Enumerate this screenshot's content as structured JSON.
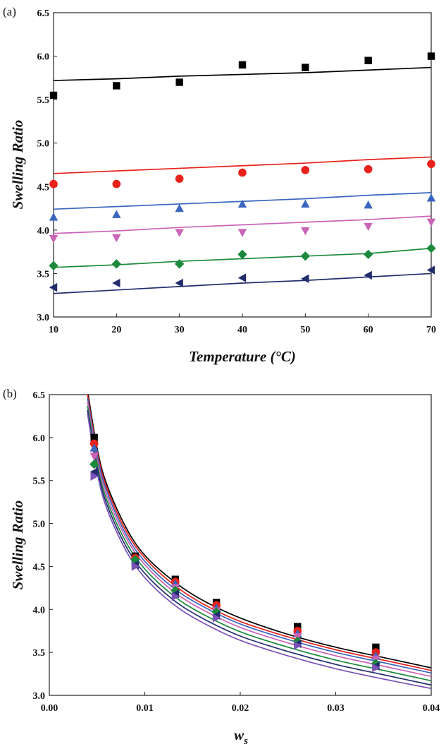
{
  "panel_a": {
    "label": "(a)",
    "xlabel": "Temperature (°C)",
    "ylabel": "Swelling Ratio"
  },
  "panel_b": {
    "label": "(b)",
    "xlabel_main": "w",
    "xlabel_sub": "s",
    "ylabel": "Swelling Ratio"
  },
  "chart_data": [
    {
      "type": "scatter",
      "title": "(a)",
      "xlabel": "Temperature (°C)",
      "ylabel": "Swelling Ratio",
      "xlim": [
        10,
        70
      ],
      "ylim": [
        3.0,
        6.5
      ],
      "x_ticks": [
        "10",
        "20",
        "30",
        "40",
        "50",
        "60",
        "70"
      ],
      "y_ticks": [
        "3.0",
        "3.5",
        "4.0",
        "4.5",
        "5.0",
        "5.5",
        "6.0",
        "6.5"
      ],
      "grid": false,
      "legend": "none",
      "series": [
        {
          "color": "#000000",
          "marker": "square",
          "x": [
            10,
            20,
            30,
            40,
            50,
            60,
            70
          ],
          "y": [
            5.55,
            5.66,
            5.7,
            5.9,
            5.87,
            5.95,
            6.0
          ],
          "fit_x": [
            10,
            20,
            30,
            40,
            50,
            60,
            70
          ],
          "fit_y": [
            5.72,
            5.74,
            5.77,
            5.79,
            5.81,
            5.84,
            5.87
          ]
        },
        {
          "color": "#e8211a",
          "marker": "circle",
          "x": [
            10,
            20,
            30,
            40,
            50,
            60,
            70
          ],
          "y": [
            4.53,
            4.53,
            4.59,
            4.66,
            4.69,
            4.7,
            4.76
          ],
          "fit_x": [
            10,
            20,
            30,
            40,
            50,
            60,
            70
          ],
          "fit_y": [
            4.65,
            4.68,
            4.71,
            4.74,
            4.77,
            4.81,
            4.84
          ]
        },
        {
          "color": "#3a66bf",
          "marker": "triangle-up",
          "x": [
            10,
            20,
            30,
            40,
            50,
            60,
            70
          ],
          "y": [
            4.15,
            4.18,
            4.25,
            4.3,
            4.3,
            4.29,
            4.37
          ],
          "fit_x": [
            10,
            20,
            30,
            40,
            50,
            60,
            70
          ],
          "fit_y": [
            4.24,
            4.27,
            4.3,
            4.33,
            4.36,
            4.4,
            4.43
          ]
        },
        {
          "color": "#c964b6",
          "marker": "triangle-down",
          "x": [
            10,
            20,
            30,
            40,
            50,
            60,
            70
          ],
          "y": [
            3.9,
            3.91,
            3.97,
            3.97,
            3.99,
            4.04,
            4.09
          ],
          "fit_x": [
            10,
            20,
            30,
            40,
            50,
            60,
            70
          ],
          "fit_y": [
            3.96,
            3.99,
            4.03,
            4.06,
            4.09,
            4.12,
            4.16
          ]
        },
        {
          "color": "#1c8a3c",
          "marker": "diamond",
          "x": [
            10,
            20,
            30,
            40,
            50,
            60,
            70
          ],
          "y": [
            3.59,
            3.61,
            3.61,
            3.72,
            3.7,
            3.72,
            3.79
          ],
          "fit_x": [
            10,
            20,
            30,
            40,
            50,
            60,
            70
          ],
          "fit_y": [
            3.57,
            3.6,
            3.64,
            3.67,
            3.7,
            3.73,
            3.79
          ]
        },
        {
          "color": "#232d6e",
          "marker": "triangle-left",
          "x": [
            10,
            20,
            30,
            40,
            50,
            60,
            70
          ],
          "y": [
            3.34,
            3.39,
            3.39,
            3.45,
            3.44,
            3.48,
            3.54
          ],
          "fit_x": [
            10,
            20,
            30,
            40,
            50,
            60,
            70
          ],
          "fit_y": [
            3.27,
            3.31,
            3.35,
            3.39,
            3.42,
            3.46,
            3.5
          ]
        }
      ]
    },
    {
      "type": "scatter",
      "title": "(b)",
      "xlabel": "ws",
      "ylabel": "Swelling Ratio",
      "xlim": [
        0.0,
        0.04
      ],
      "ylim": [
        3.0,
        6.5
      ],
      "x_ticks": [
        "0.00",
        "0.01",
        "0.02",
        "0.03",
        "0.04"
      ],
      "y_ticks": [
        "3.0",
        "3.5",
        "4.0",
        "4.5",
        "5.0",
        "5.5",
        "6.0",
        "6.5"
      ],
      "grid": false,
      "legend": "none",
      "series": [
        {
          "color": "#000000",
          "marker": "square",
          "x": [
            0.0047,
            0.009,
            0.0132,
            0.0175,
            0.026,
            0.0342
          ],
          "y": [
            6.0,
            4.62,
            4.35,
            4.08,
            3.8,
            3.56
          ],
          "fit_x": [
            0.004,
            0.005,
            0.006,
            0.008,
            0.01,
            0.013,
            0.016,
            0.02,
            0.025,
            0.03,
            0.035,
            0.04
          ],
          "fit_y": [
            6.55,
            5.88,
            5.46,
            4.96,
            4.63,
            4.33,
            4.11,
            3.9,
            3.71,
            3.56,
            3.44,
            3.32
          ]
        },
        {
          "color": "#e8211a",
          "marker": "circle",
          "x": [
            0.0047,
            0.009,
            0.0132,
            0.0175,
            0.026,
            0.0342
          ],
          "y": [
            5.93,
            4.6,
            4.32,
            4.05,
            3.75,
            3.5
          ],
          "fit_x": [
            0.004,
            0.005,
            0.006,
            0.008,
            0.01,
            0.013,
            0.016,
            0.02,
            0.025,
            0.03,
            0.035,
            0.04
          ],
          "fit_y": [
            6.5,
            5.84,
            5.42,
            4.92,
            4.6,
            4.29,
            4.07,
            3.86,
            3.68,
            3.53,
            3.41,
            3.29
          ]
        },
        {
          "color": "#3a66bf",
          "marker": "triangle-up",
          "x": [
            0.0047,
            0.009,
            0.0132,
            0.0175,
            0.026,
            0.0342
          ],
          "y": [
            5.88,
            4.58,
            4.3,
            4.02,
            3.72,
            3.46
          ],
          "fit_x": [
            0.004,
            0.005,
            0.006,
            0.008,
            0.01,
            0.013,
            0.016,
            0.02,
            0.025,
            0.03,
            0.035,
            0.04
          ],
          "fit_y": [
            6.46,
            5.8,
            5.38,
            4.88,
            4.56,
            4.25,
            4.04,
            3.83,
            3.65,
            3.5,
            3.38,
            3.26
          ]
        },
        {
          "color": "#c964b6",
          "marker": "triangle-down",
          "x": [
            0.0047,
            0.009,
            0.0132,
            0.0175,
            0.026,
            0.0342
          ],
          "y": [
            5.78,
            4.55,
            4.25,
            3.98,
            3.68,
            3.42
          ],
          "fit_x": [
            0.004,
            0.005,
            0.006,
            0.008,
            0.01,
            0.013,
            0.016,
            0.02,
            0.025,
            0.03,
            0.035,
            0.04
          ],
          "fit_y": [
            6.42,
            5.75,
            5.33,
            4.84,
            4.52,
            4.21,
            4.0,
            3.79,
            3.61,
            3.46,
            3.34,
            3.22
          ]
        },
        {
          "color": "#1c8a3c",
          "marker": "diamond",
          "x": [
            0.0047,
            0.009,
            0.0132,
            0.0175,
            0.026,
            0.0342
          ],
          "y": [
            5.69,
            4.58,
            4.22,
            3.97,
            3.63,
            3.37
          ],
          "fit_x": [
            0.004,
            0.005,
            0.006,
            0.008,
            0.01,
            0.013,
            0.016,
            0.02,
            0.025,
            0.03,
            0.035,
            0.04
          ],
          "fit_y": [
            6.37,
            5.7,
            5.28,
            4.79,
            4.47,
            4.16,
            3.95,
            3.74,
            3.56,
            3.41,
            3.29,
            3.17
          ]
        },
        {
          "color": "#232d6e",
          "marker": "triangle-left",
          "x": [
            0.0047,
            0.009,
            0.0132,
            0.0175,
            0.026,
            0.0342
          ],
          "y": [
            5.6,
            4.52,
            4.18,
            3.93,
            3.6,
            3.34
          ],
          "fit_x": [
            0.004,
            0.005,
            0.006,
            0.008,
            0.01,
            0.013,
            0.016,
            0.02,
            0.025,
            0.03,
            0.035,
            0.04
          ],
          "fit_y": [
            6.32,
            5.65,
            5.23,
            4.74,
            4.42,
            4.11,
            3.9,
            3.69,
            3.51,
            3.36,
            3.24,
            3.12
          ]
        },
        {
          "color": "#7b52b8",
          "marker": "triangle-right",
          "x": [
            0.0047,
            0.009,
            0.0132,
            0.0175,
            0.026,
            0.0342
          ],
          "y": [
            5.55,
            4.5,
            4.15,
            3.9,
            3.58,
            3.32
          ],
          "fit_x": [
            0.004,
            0.005,
            0.006,
            0.008,
            0.01,
            0.013,
            0.016,
            0.02,
            0.025,
            0.03,
            0.035,
            0.04
          ],
          "fit_y": [
            6.28,
            5.6,
            5.18,
            4.69,
            4.37,
            4.06,
            3.85,
            3.64,
            3.46,
            3.31,
            3.19,
            3.08
          ]
        }
      ]
    }
  ]
}
